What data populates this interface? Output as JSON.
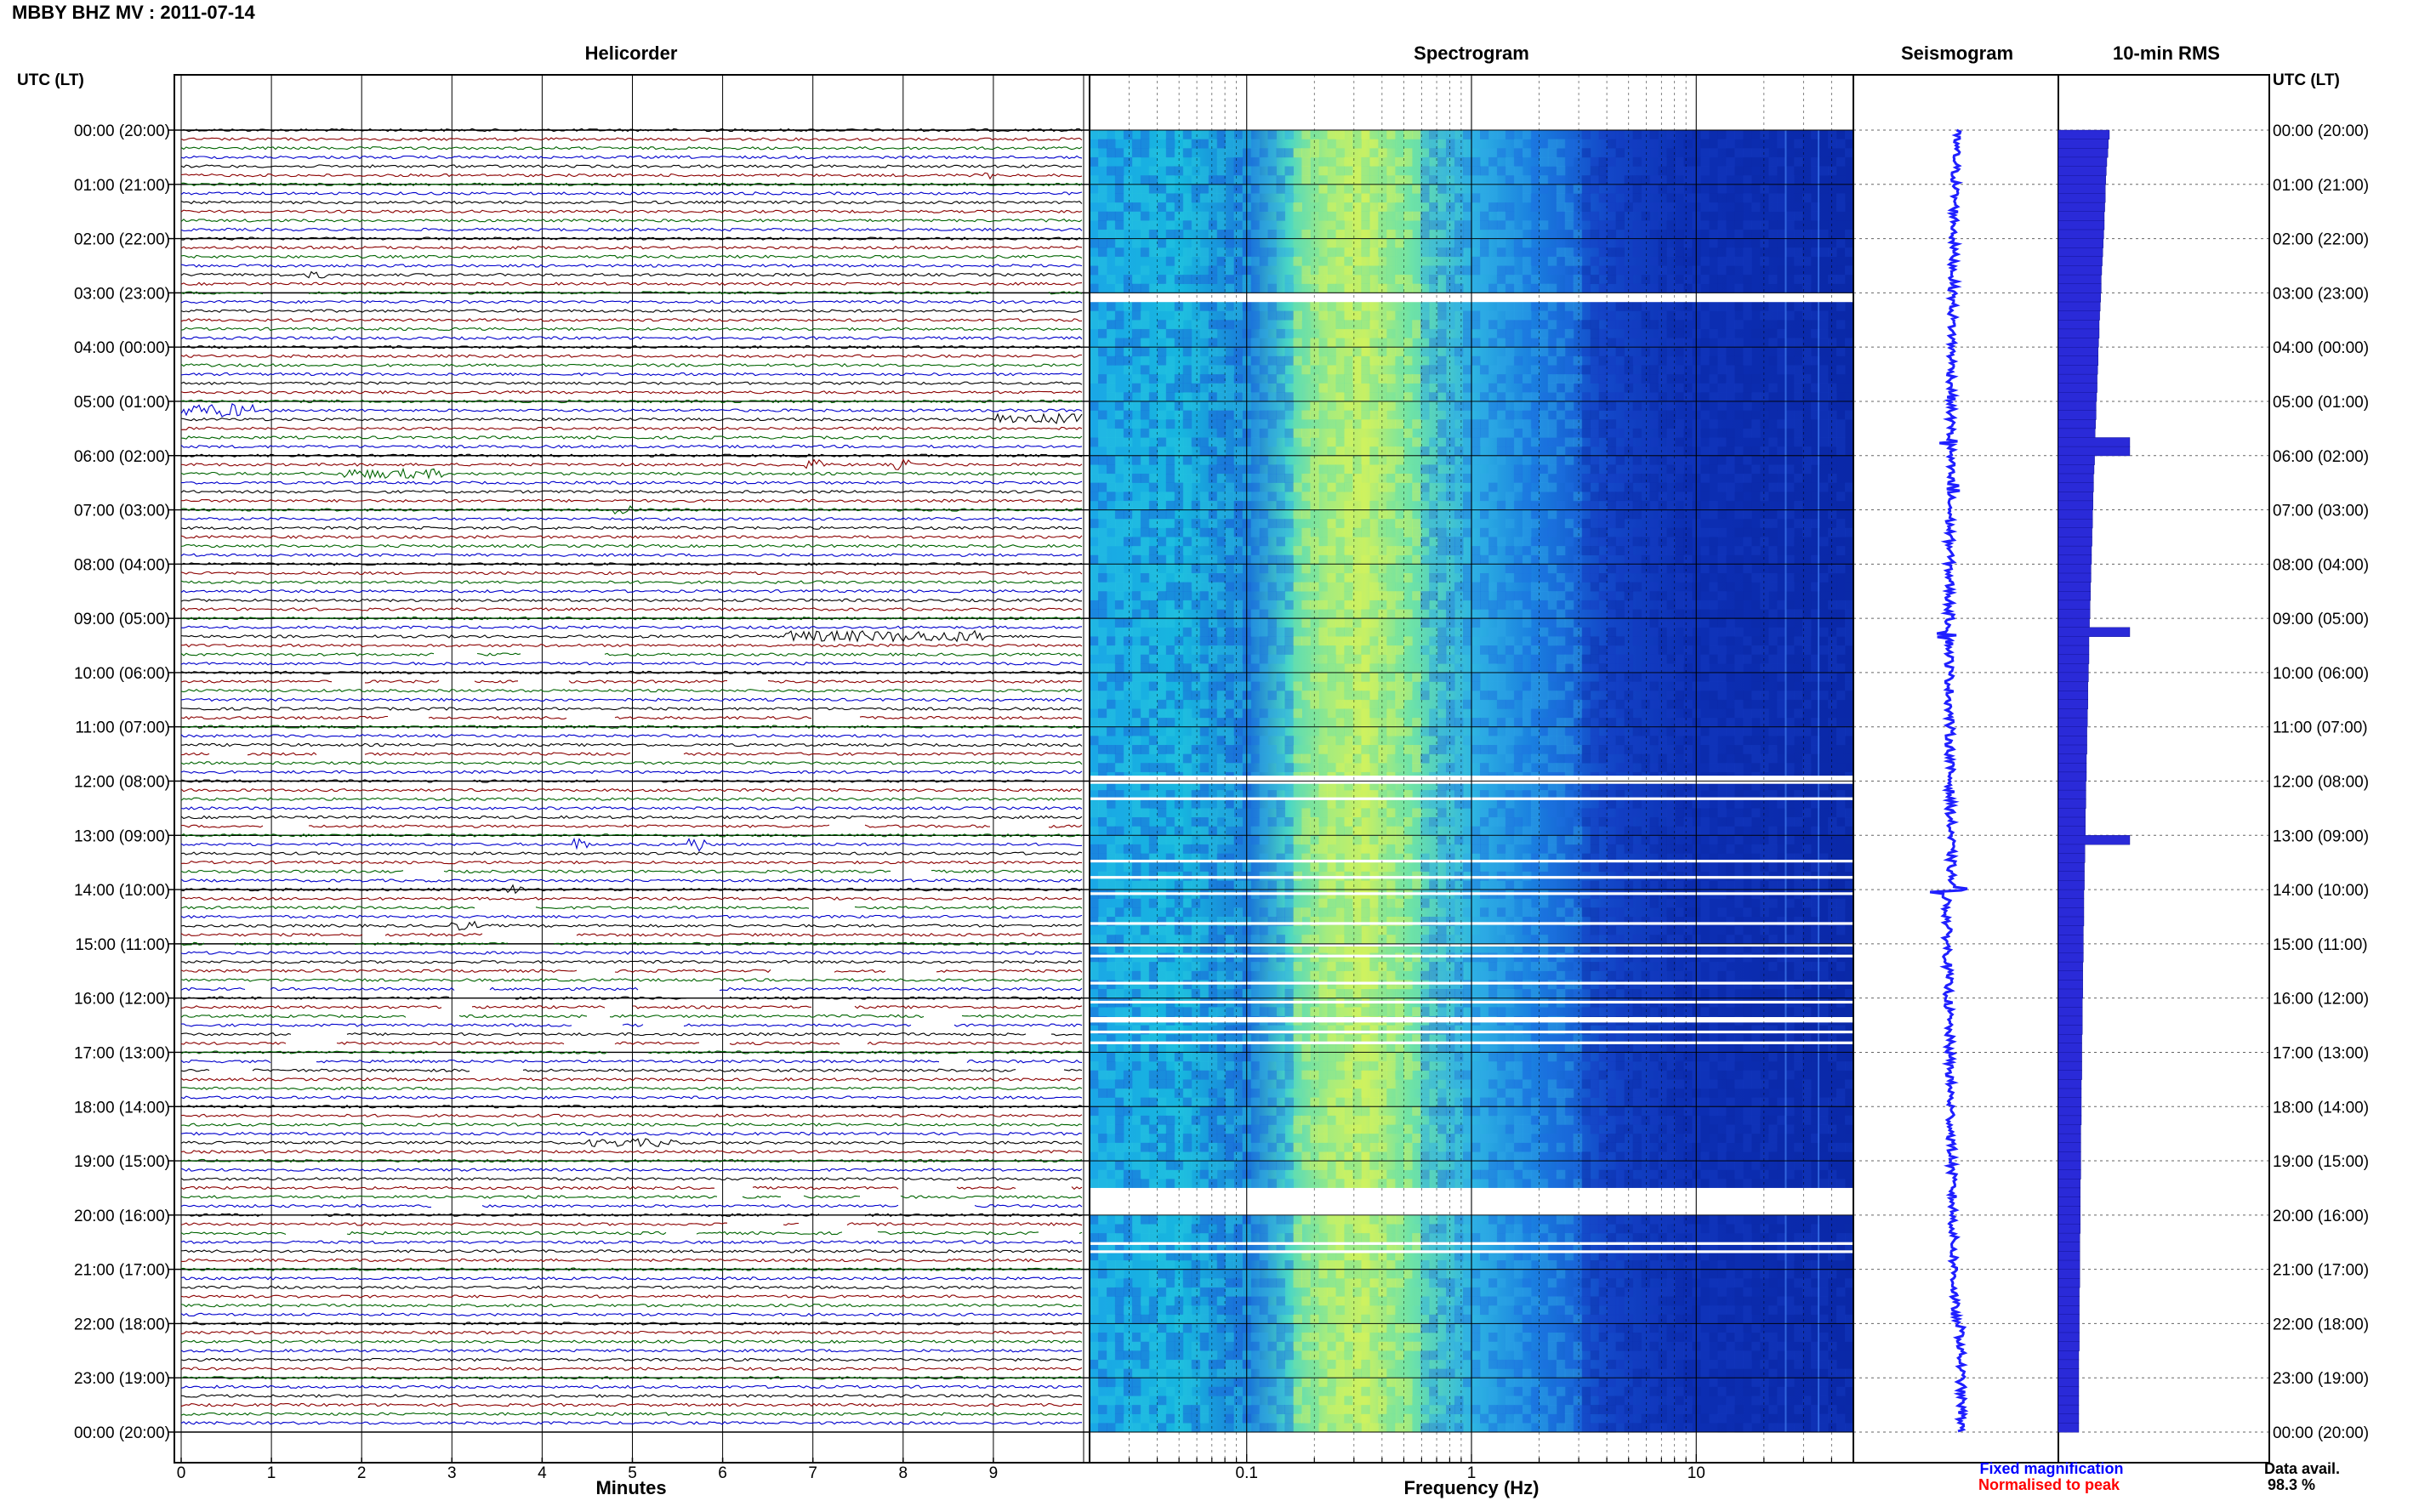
{
  "header": {
    "title": "MBBY BHZ MV : 2011-07-14"
  },
  "panels": {
    "helicorder": "Helicorder",
    "spectrogram": "Spectrogram",
    "seismogram": "Seismogram",
    "rms": "10-min RMS"
  },
  "axes": {
    "utc_label_left": "UTC (LT)",
    "utc_label_right": "UTC (LT)",
    "minutes_label": "Minutes",
    "frequency_label": "Frequency (Hz)"
  },
  "legend": {
    "fixed": "Fixed magnification",
    "normalised": "Normalised to peak",
    "data_avail_label": "Data avail.",
    "data_avail_value": "98.3 %"
  },
  "colors": {
    "trace_cycle": [
      "#000000",
      "#8b0000",
      "#006400",
      "#0000cc"
    ],
    "fixed_legend": "#0000ff",
    "normalised_legend": "#ff0000",
    "seismogram": "#1f1fff",
    "rms_bar": "#2a2ad8",
    "spectrogram_base": "#0a28a8"
  },
  "chart_data": [
    {
      "type": "line",
      "panel": "Helicorder",
      "xlabel": "Minutes",
      "xlim": [
        0,
        10
      ],
      "x_ticks": [
        "0",
        "1",
        "2",
        "3",
        "4",
        "5",
        "6",
        "7",
        "8",
        "9"
      ],
      "rows_per_day": 144,
      "row_minutes": 10,
      "y_ticks": [
        "00:00 (20:00)",
        "01:00 (21:00)",
        "02:00 (22:00)",
        "03:00 (23:00)",
        "04:00 (00:00)",
        "05:00 (01:00)",
        "06:00 (02:00)",
        "07:00 (03:00)",
        "08:00 (04:00)",
        "09:00 (05:00)",
        "10:00 (06:00)",
        "11:00 (07:00)",
        "12:00 (08:00)",
        "13:00 (09:00)",
        "14:00 (10:00)",
        "15:00 (11:00)",
        "16:00 (12:00)",
        "17:00 (13:00)",
        "18:00 (14:00)",
        "19:00 (15:00)",
        "20:00 (16:00)",
        "21:00 (17:00)",
        "22:00 (18:00)",
        "23:00 (19:00)",
        "00:00 (20:00)"
      ],
      "events": [
        {
          "row": 5,
          "start_min": 8.9,
          "end_min": 9.0,
          "amp": 0.5
        },
        {
          "row": 16,
          "start_min": 1.4,
          "end_min": 1.6,
          "amp": 0.4
        },
        {
          "row": 31,
          "start_min": 0.0,
          "end_min": 0.8,
          "amp": 1.6
        },
        {
          "row": 32,
          "start_min": 9.0,
          "end_min": 10.0,
          "amp": 1.3
        },
        {
          "row": 37,
          "start_min": 6.9,
          "end_min": 7.2,
          "amp": 1.0
        },
        {
          "row": 37,
          "start_min": 7.9,
          "end_min": 8.1,
          "amp": 1.1
        },
        {
          "row": 38,
          "start_min": 1.8,
          "end_min": 2.9,
          "amp": 0.9
        },
        {
          "row": 42,
          "start_min": 4.8,
          "end_min": 5.0,
          "amp": 0.8
        },
        {
          "row": 56,
          "start_min": 6.7,
          "end_min": 8.9,
          "amp": 1.2
        },
        {
          "row": 61,
          "start_min": 3.0,
          "end_min": 3.1,
          "amp": 0.6
        },
        {
          "row": 79,
          "start_min": 4.3,
          "end_min": 4.5,
          "amp": 1.4
        },
        {
          "row": 79,
          "start_min": 5.6,
          "end_min": 5.8,
          "amp": 2.0
        },
        {
          "row": 84,
          "start_min": 3.6,
          "end_min": 3.8,
          "amp": 0.8
        },
        {
          "row": 88,
          "start_min": 2.9,
          "end_min": 3.3,
          "amp": 0.8
        },
        {
          "row": 112,
          "start_min": 4.5,
          "end_min": 5.5,
          "amp": 0.6
        }
      ],
      "gap_rows": [
        18,
        58,
        61,
        65,
        69,
        72,
        77,
        82,
        86,
        89,
        90,
        93,
        95,
        96,
        97,
        98,
        99,
        100,
        101,
        102,
        103,
        104,
        117,
        118,
        119,
        120,
        121,
        122
      ]
    },
    {
      "type": "heatmap",
      "panel": "Spectrogram",
      "xlabel": "Frequency (Hz)",
      "x_scale": "log",
      "xlim": [
        0.02,
        50
      ],
      "x_ticks": [
        "0.1",
        "1",
        "10"
      ],
      "peak_frequency_hz": 0.3,
      "gap_hours": [
        [
          3.0,
          3.17
        ],
        [
          11.9,
          12.05
        ],
        [
          12.3,
          12.35
        ],
        [
          13.45,
          13.5
        ],
        [
          13.75,
          13.8
        ],
        [
          14.05,
          14.1
        ],
        [
          14.6,
          14.65
        ],
        [
          15.0,
          15.05
        ],
        [
          15.2,
          15.25
        ],
        [
          15.7,
          15.75
        ],
        [
          16.05,
          16.1
        ],
        [
          16.35,
          16.45
        ],
        [
          16.6,
          16.65
        ],
        [
          16.8,
          16.85
        ],
        [
          19.5,
          20.0
        ],
        [
          20.5,
          20.55
        ],
        [
          20.65,
          20.7
        ]
      ],
      "harmonic_lines_hz": [
        25,
        35
      ]
    },
    {
      "type": "line",
      "panel": "Seismogram",
      "xlabel": "",
      "ylim": [
        0,
        24
      ],
      "spikes_hours": [
        5.75,
        6.6,
        9.3,
        12.95,
        14.0
      ]
    },
    {
      "type": "bar",
      "panel": "10-min RMS",
      "xlabel": "",
      "values": [
        1.0,
        0.98,
        0.97,
        0.95,
        0.94,
        0.93,
        0.92,
        0.92,
        0.91,
        0.9,
        0.9,
        0.89,
        0.88,
        0.87,
        0.86,
        0.85,
        0.84,
        0.84,
        0.83,
        0.82,
        0.81,
        0.8,
        0.8,
        0.79,
        0.78,
        0.78,
        0.77,
        0.76,
        0.76,
        0.75,
        0.74,
        0.74,
        0.73,
        0.72,
        0.72,
        0.71,
        0.71,
        0.7,
        0.69,
        0.69,
        0.68,
        0.68,
        0.67,
        0.67,
        0.66,
        0.66,
        0.65,
        0.65,
        0.64,
        0.64,
        0.63,
        0.63,
        0.62,
        0.62,
        0.61,
        0.61,
        0.6,
        0.6,
        0.6,
        0.59,
        0.59,
        0.58,
        0.58,
        0.58,
        0.57,
        0.57,
        0.56,
        0.56,
        0.56,
        0.55,
        0.55,
        0.55,
        0.54,
        0.54,
        0.54,
        0.53,
        0.53,
        0.53,
        0.52,
        0.52,
        0.52,
        0.51,
        0.51,
        0.51,
        0.5,
        0.5,
        0.5,
        0.5,
        0.49,
        0.49,
        0.49,
        0.49,
        0.48,
        0.48,
        0.48,
        0.48,
        0.47,
        0.47,
        0.47,
        0.47,
        0.46,
        0.46,
        0.46,
        0.46,
        0.46,
        0.45,
        0.45,
        0.45,
        0.45,
        0.45,
        0.44,
        0.44,
        0.44,
        0.44,
        0.44,
        0.44,
        0.43,
        0.43,
        0.43,
        0.43,
        0.43,
        0.43,
        0.42,
        0.42,
        0.42,
        0.42,
        0.42,
        0.42,
        0.41,
        0.41,
        0.41,
        0.41,
        0.41,
        0.41,
        0.41,
        0.4,
        0.4,
        0.4,
        0.4,
        0.4,
        0.4,
        0.4,
        0.4,
        0.4
      ],
      "notable_hours": [
        5.75,
        9.2,
        12.95
      ]
    }
  ]
}
